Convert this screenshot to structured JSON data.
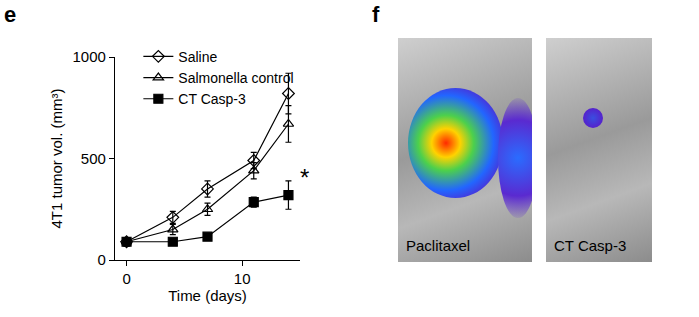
{
  "chart_data": {
    "type": "line",
    "panel_label": "e",
    "xlabel": "Time (days)",
    "ylabel": "4T1 tumor vol. (mm³)",
    "x": [
      0,
      4,
      7,
      11,
      14
    ],
    "xlim": [
      -1,
      15
    ],
    "xticks": [
      0,
      10
    ],
    "ylim": [
      0,
      1000
    ],
    "yticks": [
      0,
      500,
      1000
    ],
    "legend": "upper left",
    "series": [
      {
        "name": "Saline",
        "color": "#000000",
        "marker": "diamond-open",
        "values": [
          90,
          210,
          350,
          490,
          820
        ],
        "errors": [
          20,
          30,
          40,
          40,
          100
        ]
      },
      {
        "name": "Salmonella control",
        "color": "#000000",
        "marker": "triangle-up-open",
        "values": [
          90,
          150,
          250,
          440,
          670
        ],
        "errors": [
          20,
          25,
          30,
          40,
          90
        ]
      },
      {
        "name": "CT Casp-3",
        "color": "#000000",
        "marker": "square",
        "values": [
          90,
          90,
          115,
          285,
          320
        ],
        "errors": [
          20,
          15,
          15,
          25,
          70
        ]
      }
    ],
    "annotations": [
      {
        "text": "*",
        "series": "CT Casp-3"
      }
    ]
  },
  "images": {
    "panel_label": "f",
    "labels": [
      "Paclitaxel",
      "CT Casp-3"
    ]
  }
}
